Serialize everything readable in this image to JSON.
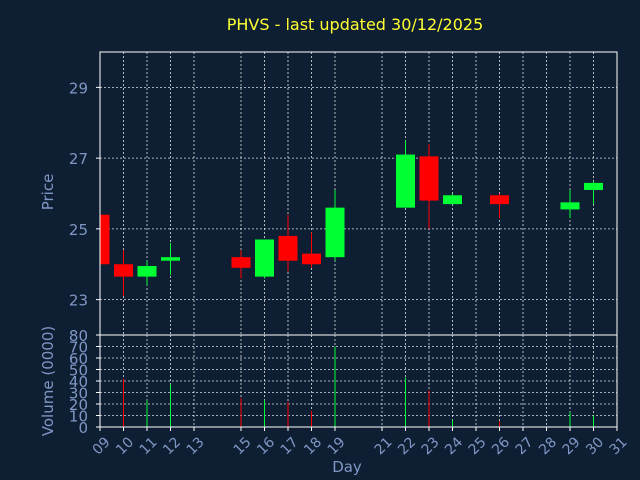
{
  "chart_data": {
    "type": "candlestick",
    "title": "PHVS - last updated 30/12/2025",
    "price_panel": {
      "ylabel": "Price",
      "ylim": [
        22,
        30
      ],
      "yticks": [
        23,
        25,
        27,
        29
      ],
      "grid": true
    },
    "volume_panel": {
      "ylabel": "Volume (0000)",
      "ylim": [
        0,
        80
      ],
      "yticks": [
        0,
        10,
        20,
        30,
        40,
        50,
        60,
        70,
        80
      ],
      "grid": true
    },
    "xlabel": "Day",
    "xlim": [
      9,
      31
    ],
    "x_ticks": [
      "09",
      "10",
      "11",
      "12",
      "13",
      "15",
      "16",
      "17",
      "18",
      "19",
      "21",
      "22",
      "23",
      "24",
      "25",
      "26",
      "27",
      "28",
      "29",
      "30",
      "31"
    ],
    "colors": {
      "up": "#00ff33",
      "down": "#ff0000"
    },
    "candles": [
      {
        "day": 9,
        "open": 25.4,
        "close": 24.0,
        "high": 25.4,
        "low": 24.0,
        "volume": 0
      },
      {
        "day": 10,
        "open": 24.0,
        "close": 23.65,
        "high": 24.4,
        "low": 23.1,
        "volume": 42
      },
      {
        "day": 11,
        "open": 23.65,
        "close": 23.95,
        "high": 24.1,
        "low": 23.4,
        "volume": 23
      },
      {
        "day": 12,
        "open": 24.1,
        "close": 24.2,
        "high": 24.6,
        "low": 23.7,
        "volume": 37
      },
      {
        "day": 15,
        "open": 24.2,
        "close": 23.9,
        "high": 24.4,
        "low": 23.6,
        "volume": 25
      },
      {
        "day": 16,
        "open": 23.65,
        "close": 24.7,
        "high": 24.7,
        "low": 23.6,
        "volume": 23
      },
      {
        "day": 17,
        "open": 24.8,
        "close": 24.1,
        "high": 25.4,
        "low": 23.8,
        "volume": 22
      },
      {
        "day": 18,
        "open": 24.3,
        "close": 24.0,
        "high": 24.9,
        "low": 23.9,
        "volume": 14
      },
      {
        "day": 19,
        "open": 24.2,
        "close": 25.6,
        "high": 26.1,
        "low": 24.1,
        "volume": 70
      },
      {
        "day": 22,
        "open": 25.6,
        "close": 27.1,
        "high": 27.5,
        "low": 25.6,
        "volume": 43
      },
      {
        "day": 23,
        "open": 27.05,
        "close": 25.8,
        "high": 27.4,
        "low": 25.0,
        "volume": 32
      },
      {
        "day": 24,
        "open": 25.7,
        "close": 25.95,
        "high": 26.0,
        "low": 25.7,
        "volume": 6
      },
      {
        "day": 26,
        "open": 25.95,
        "close": 25.7,
        "high": 26.0,
        "low": 25.3,
        "volume": 5
      },
      {
        "day": 29,
        "open": 25.55,
        "close": 25.75,
        "high": 26.1,
        "low": 25.3,
        "volume": 13
      },
      {
        "day": 30,
        "open": 26.1,
        "close": 26.3,
        "high": 26.35,
        "low": 25.7,
        "volume": 10
      }
    ]
  }
}
